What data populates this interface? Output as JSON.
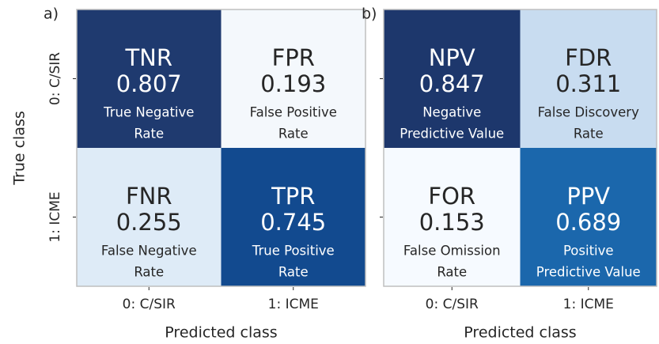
{
  "chart_data": [
    {
      "type": "heatmap",
      "panel_label": "a)",
      "ylabel": "True class",
      "xlabel": "Predicted class",
      "x_categories": [
        "0: C/SIR",
        "1: ICME"
      ],
      "y_categories": [
        "0: C/SIR",
        "1: ICME"
      ],
      "values": [
        [
          0.807,
          0.193
        ],
        [
          0.255,
          0.745
        ]
      ],
      "abbreviations": [
        [
          "TNR",
          "FPR"
        ],
        [
          "FNR",
          "TPR"
        ]
      ],
      "descriptions": [
        [
          [
            "True Negative",
            "Rate"
          ],
          [
            "False Positive",
            "Rate"
          ]
        ],
        [
          [
            "False Negative",
            "Rate"
          ],
          [
            "True Positive",
            "Rate"
          ]
        ]
      ],
      "colors": [
        [
          "#1f3a6f",
          "#f4f8fc"
        ],
        [
          "#deebf7",
          "#124a8f"
        ]
      ]
    },
    {
      "type": "heatmap",
      "panel_label": "b)",
      "xlabel": "Predicted class",
      "x_categories": [
        "0: C/SIR",
        "1: ICME"
      ],
      "values": [
        [
          0.847,
          0.311
        ],
        [
          0.153,
          0.689
        ]
      ],
      "abbreviations": [
        [
          "NPV",
          "FDR"
        ],
        [
          "FOR",
          "PPV"
        ]
      ],
      "descriptions": [
        [
          [
            "Negative",
            "Predictive Value"
          ],
          [
            "False Discovery",
            "Rate"
          ]
        ],
        [
          [
            "False Omission",
            "Rate"
          ],
          [
            "Positive",
            "Predictive Value"
          ]
        ]
      ],
      "colors": [
        [
          "#1d376c",
          "#c8dcf0"
        ],
        [
          "#f6faff",
          "#1b67ac"
        ]
      ]
    }
  ]
}
